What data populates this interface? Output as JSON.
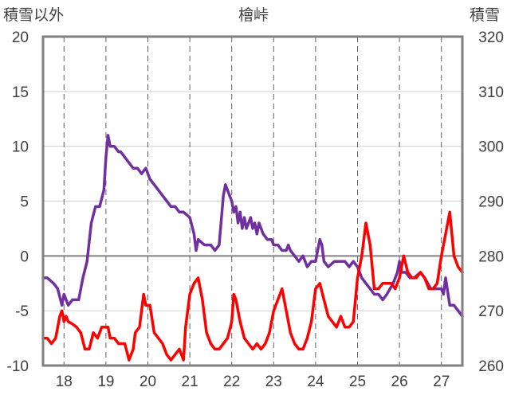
{
  "chart_data": {
    "type": "line",
    "title": "檜峠",
    "left_axis": {
      "label": "積雪以外",
      "range": [
        -10,
        20
      ],
      "ticks": [
        "20",
        "15",
        "10",
        "5",
        "0",
        "-5",
        "-10"
      ]
    },
    "right_axis": {
      "label": "積雪",
      "range": [
        260,
        320
      ],
      "ticks": [
        "320",
        "310",
        "300",
        "290",
        "280",
        "270",
        "260"
      ]
    },
    "x_axis": {
      "ticks": [
        "18",
        "19",
        "20",
        "21",
        "22",
        "23",
        "24",
        "25",
        "26",
        "27"
      ],
      "range": [
        17.5,
        27.5
      ]
    },
    "grid": true,
    "series": [
      {
        "axis": "right",
        "color": "#7030a0",
        "x": [
          17.5,
          17.6,
          17.75,
          17.85,
          17.95,
          18.0,
          18.1,
          18.2,
          18.35,
          18.45,
          18.55,
          18.65,
          18.75,
          18.85,
          18.95,
          19.0,
          19.05,
          19.1,
          19.2,
          19.3,
          19.35,
          19.45,
          19.55,
          19.65,
          19.75,
          19.85,
          19.95,
          20.05,
          20.15,
          20.25,
          20.35,
          20.45,
          20.55,
          20.65,
          20.75,
          20.85,
          21.0,
          21.1,
          21.15,
          21.2,
          21.35,
          21.5,
          21.6,
          21.7,
          21.8,
          21.85,
          21.9,
          22.0,
          22.05,
          22.1,
          22.15,
          22.2,
          22.25,
          22.3,
          22.35,
          22.45,
          22.5,
          22.55,
          22.6,
          22.65,
          22.7,
          22.75,
          22.85,
          22.95,
          23.0,
          23.1,
          23.2,
          23.3,
          23.35,
          23.4,
          23.5,
          23.6,
          23.7,
          23.8,
          23.9,
          24.0,
          24.05,
          24.1,
          24.15,
          24.2,
          24.3,
          24.45,
          24.55,
          24.7,
          24.8,
          24.9,
          25.0,
          25.1,
          25.2,
          25.3,
          25.4,
          25.5,
          25.6,
          25.7,
          25.85,
          25.95,
          26.0,
          26.05,
          26.15,
          26.25,
          26.35,
          26.5,
          26.6,
          26.75,
          26.85,
          27.0,
          27.05,
          27.1,
          27.2,
          27.3,
          27.4,
          27.5
        ],
        "y": [
          276,
          276,
          275,
          274,
          271,
          273,
          271,
          272,
          272,
          276,
          279,
          286,
          289,
          289,
          292,
          298,
          302,
          300,
          300,
          299,
          299,
          298,
          297,
          296,
          296,
          295,
          296,
          294,
          293,
          292,
          291,
          290,
          289,
          289,
          288,
          288,
          287,
          284,
          281,
          283,
          282,
          282,
          281,
          282,
          291,
          293,
          292,
          290,
          288,
          289,
          286,
          288,
          285,
          287,
          285,
          287,
          285,
          286,
          284,
          286,
          285,
          284,
          283,
          283,
          282,
          282,
          281,
          281,
          282,
          281,
          280,
          279,
          280,
          278,
          279,
          279,
          281,
          283,
          282,
          279,
          278,
          279,
          279,
          279,
          278,
          279,
          278,
          276,
          275,
          274,
          273,
          273,
          272,
          273,
          275,
          277,
          279,
          277,
          277,
          276,
          276,
          277,
          276,
          274,
          274,
          274,
          273,
          276,
          271,
          271,
          270,
          269
        ]
      },
      {
        "axis": "left",
        "color": "#ff0000",
        "x": [
          17.5,
          17.6,
          17.7,
          17.8,
          17.85,
          17.9,
          17.95,
          18.0,
          18.05,
          18.1,
          18.2,
          18.3,
          18.4,
          18.5,
          18.6,
          18.7,
          18.8,
          18.9,
          18.95,
          19.05,
          19.1,
          19.2,
          19.3,
          19.45,
          19.55,
          19.65,
          19.7,
          19.8,
          19.9,
          19.95,
          20.05,
          20.15,
          20.25,
          20.35,
          20.45,
          20.55,
          20.65,
          20.75,
          20.85,
          20.9,
          21.0,
          21.1,
          21.2,
          21.3,
          21.4,
          21.5,
          21.6,
          21.7,
          21.8,
          21.9,
          22.0,
          22.05,
          22.1,
          22.2,
          22.3,
          22.4,
          22.5,
          22.6,
          22.7,
          22.8,
          22.9,
          23.0,
          23.1,
          23.2,
          23.3,
          23.4,
          23.5,
          23.6,
          23.7,
          23.8,
          23.9,
          24.0,
          24.1,
          24.2,
          24.3,
          24.4,
          24.5,
          24.6,
          24.7,
          24.8,
          24.9,
          25.0,
          25.1,
          25.2,
          25.3,
          25.4,
          25.5,
          25.6,
          25.7,
          25.8,
          25.9,
          26.0,
          26.1,
          26.2,
          26.3,
          26.4,
          26.5,
          26.6,
          26.7,
          26.8,
          26.9,
          27.0,
          27.1,
          27.2,
          27.3,
          27.4,
          27.5
        ],
        "y": [
          -7.5,
          -7.5,
          -8,
          -7.5,
          -6.5,
          -5.5,
          -5,
          -6,
          -5.5,
          -6,
          -6.2,
          -6.5,
          -7,
          -8.5,
          -8.5,
          -7,
          -7.5,
          -6.5,
          -6.5,
          -6.5,
          -7.5,
          -7.5,
          -8,
          -8,
          -9.5,
          -8.5,
          -7,
          -6.5,
          -3.5,
          -4.5,
          -4.5,
          -7,
          -7.5,
          -8,
          -9,
          -9.5,
          -9,
          -8.5,
          -9.5,
          -6.5,
          -3.5,
          -2.5,
          -2,
          -4,
          -7,
          -8,
          -8.5,
          -8.5,
          -8,
          -7.5,
          -6,
          -3.5,
          -4,
          -6,
          -7.5,
          -8,
          -8.5,
          -8,
          -8.5,
          -8,
          -7,
          -5,
          -4,
          -3,
          -5,
          -7,
          -8,
          -8.5,
          -8.5,
          -7.5,
          -6,
          -3,
          -2.5,
          -4,
          -5.5,
          -6,
          -6.5,
          -5.5,
          -6.5,
          -6.5,
          -6,
          -2,
          0,
          3,
          1,
          -3,
          -3,
          -2.5,
          -2.5,
          -2.5,
          -3,
          -2,
          0,
          -1.5,
          -2,
          -2,
          -1.5,
          -2,
          -3,
          -3,
          -2.5,
          0,
          2,
          4,
          0,
          -1,
          -1.5
        ]
      }
    ]
  }
}
